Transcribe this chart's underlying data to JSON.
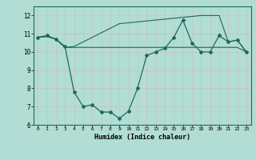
{
  "xlabel": "Humidex (Indice chaleur)",
  "x": [
    0,
    1,
    2,
    3,
    4,
    5,
    6,
    7,
    8,
    9,
    10,
    11,
    12,
    13,
    14,
    15,
    16,
    17,
    18,
    19,
    20,
    21,
    22,
    23
  ],
  "line1": [
    10.8,
    10.9,
    10.7,
    10.3,
    7.8,
    7.0,
    7.1,
    6.7,
    6.7,
    6.35,
    6.75,
    8.0,
    9.8,
    10.0,
    10.2,
    10.8,
    11.75,
    10.5,
    10.0,
    10.0,
    10.9,
    10.55,
    10.65,
    10.0
  ],
  "line2": [
    10.8,
    10.85,
    10.7,
    10.25,
    10.25,
    10.25,
    10.25,
    10.25,
    10.25,
    10.25,
    10.25,
    10.25,
    10.25,
    10.25,
    10.25,
    10.25,
    10.25,
    10.25,
    10.25,
    10.25,
    10.25,
    10.25,
    10.25,
    10.0
  ],
  "line3": [
    10.8,
    10.85,
    10.7,
    10.25,
    10.3,
    10.55,
    10.8,
    11.05,
    11.3,
    11.55,
    11.6,
    11.65,
    11.7,
    11.75,
    11.8,
    11.85,
    11.9,
    11.95,
    12.0,
    12.0,
    12.0,
    10.55,
    10.65,
    10.0
  ],
  "ylim": [
    6,
    12.5
  ],
  "xlim": [
    -0.5,
    23.5
  ],
  "yticks": [
    6,
    7,
    8,
    9,
    10,
    11,
    12
  ],
  "xticks": [
    0,
    1,
    2,
    3,
    4,
    5,
    6,
    7,
    8,
    9,
    10,
    11,
    12,
    13,
    14,
    15,
    16,
    17,
    18,
    19,
    20,
    21,
    22,
    23
  ],
  "xtick_labels": [
    "0",
    "1",
    "2",
    "3",
    "4",
    "5",
    "6",
    "7",
    "8",
    "9",
    "10",
    "11",
    "12",
    "13",
    "14",
    "15",
    "16",
    "17",
    "18",
    "19",
    "20",
    "21",
    "22",
    "23"
  ],
  "line_color": "#1a6b5a",
  "bg_color": "#b2ddd4",
  "grid_color": "#d0eeea",
  "axes_color": "#1a6b5a"
}
